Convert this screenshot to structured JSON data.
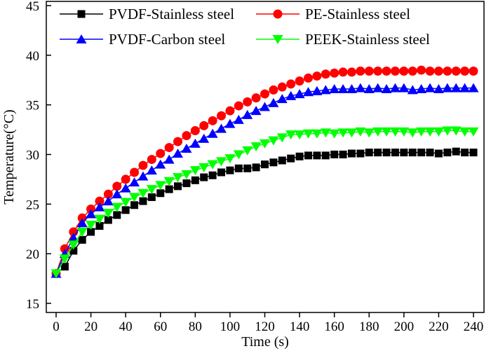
{
  "chart_data": {
    "type": "line",
    "title": "",
    "xlabel": "Time (s)",
    "ylabel": "Temperature(°C)",
    "xlim": [
      -5,
      245
    ],
    "ylim": [
      15,
      45
    ],
    "xticks": [
      0,
      20,
      40,
      60,
      80,
      100,
      120,
      140,
      160,
      180,
      200,
      220,
      240
    ],
    "yticks": [
      15,
      20,
      25,
      30,
      35,
      40,
      45
    ],
    "grid": false,
    "legend_placement": "top",
    "x": [
      0,
      5,
      10,
      15,
      20,
      25,
      30,
      35,
      40,
      45,
      50,
      55,
      60,
      65,
      70,
      75,
      80,
      85,
      90,
      95,
      100,
      105,
      110,
      115,
      120,
      125,
      130,
      135,
      140,
      145,
      150,
      155,
      160,
      165,
      170,
      175,
      180,
      185,
      190,
      195,
      200,
      205,
      210,
      215,
      220,
      225,
      230,
      235,
      240
    ],
    "series": [
      {
        "name": "PVDF-Stainless steel",
        "color": "#000000",
        "marker": "square",
        "values": [
          18.0,
          18.7,
          20.3,
          21.4,
          22.2,
          22.8,
          23.4,
          23.9,
          24.4,
          24.9,
          25.3,
          25.7,
          26.1,
          26.5,
          26.8,
          27.1,
          27.4,
          27.7,
          27.9,
          28.2,
          28.4,
          28.6,
          28.6,
          28.7,
          29.0,
          29.2,
          29.4,
          29.6,
          29.8,
          29.9,
          29.9,
          29.9,
          30.0,
          30.0,
          30.1,
          30.1,
          30.2,
          30.2,
          30.2,
          30.2,
          30.2,
          30.2,
          30.2,
          30.2,
          30.1,
          30.2,
          30.3,
          30.2,
          30.2
        ]
      },
      {
        "name": "PE-Stainless steel",
        "color": "#ff0000",
        "marker": "circle",
        "values": [
          18.0,
          20.5,
          22.2,
          23.6,
          24.5,
          25.3,
          26.0,
          26.8,
          27.5,
          28.2,
          28.9,
          29.5,
          30.1,
          30.7,
          31.3,
          31.9,
          32.4,
          32.9,
          33.4,
          33.9,
          34.4,
          34.9,
          35.3,
          35.7,
          36.1,
          36.5,
          36.8,
          37.1,
          37.4,
          37.7,
          37.9,
          38.1,
          38.2,
          38.3,
          38.3,
          38.4,
          38.4,
          38.4,
          38.4,
          38.4,
          38.4,
          38.4,
          38.5,
          38.4,
          38.4,
          38.4,
          38.4,
          38.4,
          38.4
        ]
      },
      {
        "name": "PVDF-Carbon steel",
        "color": "#0000ff",
        "marker": "triangle-up",
        "values": [
          18.0,
          20.0,
          21.6,
          23.1,
          24.0,
          24.7,
          25.3,
          26.0,
          26.6,
          27.2,
          27.8,
          28.4,
          29.0,
          29.5,
          30.1,
          30.6,
          31.1,
          31.6,
          32.1,
          32.6,
          33.1,
          33.5,
          34.0,
          34.4,
          34.8,
          35.2,
          35.6,
          35.9,
          36.1,
          36.3,
          36.4,
          36.5,
          36.6,
          36.6,
          36.6,
          36.7,
          36.6,
          36.7,
          36.6,
          36.7,
          36.7,
          36.5,
          36.6,
          36.7,
          36.6,
          36.7,
          36.7,
          36.7,
          36.7
        ]
      },
      {
        "name": "PEEK-Stainless steel",
        "color": "#00ff00",
        "marker": "triangle-down",
        "values": [
          18.0,
          19.5,
          20.9,
          22.2,
          22.9,
          23.5,
          24.1,
          24.7,
          25.2,
          25.7,
          26.1,
          26.5,
          26.9,
          27.3,
          27.7,
          28.0,
          28.4,
          28.7,
          29.0,
          29.3,
          29.6,
          30.0,
          30.4,
          30.8,
          31.1,
          31.4,
          31.7,
          32.0,
          32.0,
          32.1,
          32.1,
          32.2,
          32.1,
          32.2,
          32.2,
          32.3,
          32.2,
          32.3,
          32.3,
          32.3,
          32.3,
          32.2,
          32.3,
          32.3,
          32.3,
          32.4,
          32.4,
          32.3,
          32.3
        ]
      }
    ]
  }
}
